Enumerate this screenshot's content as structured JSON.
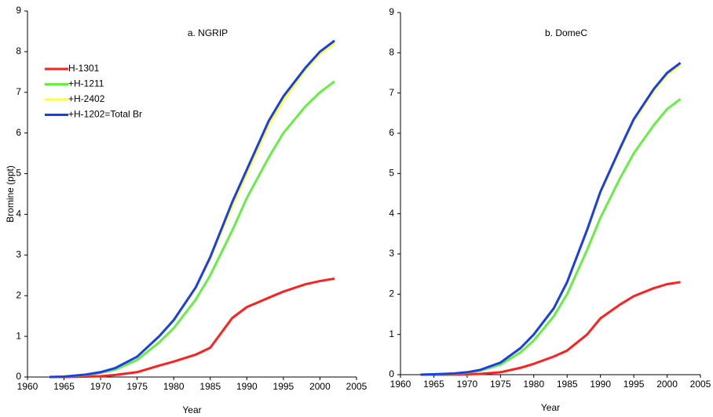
{
  "chart_data": [
    {
      "type": "line",
      "title": "a. NGRIP",
      "x_label": "Year",
      "y_label": "Bromine (ppt)",
      "x": [
        1963,
        1965,
        1968,
        1970,
        1972,
        1975,
        1978,
        1980,
        1983,
        1985,
        1988,
        1990,
        1993,
        1995,
        1998,
        2000,
        2002
      ],
      "series": [
        {
          "name": "H-1301",
          "color": "#ff2020",
          "values": [
            0,
            0,
            0.01,
            0.02,
            0.05,
            0.12,
            0.28,
            0.38,
            0.55,
            0.72,
            1.45,
            1.72,
            1.95,
            2.1,
            2.28,
            2.36,
            2.42
          ]
        },
        {
          "name": "+H-1211",
          "color": "#66ee44",
          "values": [
            0,
            0.01,
            0.05,
            0.1,
            0.18,
            0.42,
            0.85,
            1.2,
            1.9,
            2.5,
            3.6,
            4.4,
            5.4,
            6.0,
            6.65,
            7.0,
            7.27
          ]
        },
        {
          "name": "+H-2402",
          "color": "#ffff33",
          "values": [
            0,
            0.01,
            0.06,
            0.12,
            0.22,
            0.5,
            1.0,
            1.4,
            2.2,
            2.9,
            4.2,
            5.0,
            6.2,
            6.8,
            7.55,
            7.95,
            8.2
          ]
        },
        {
          "name": "+H-1202=Total Br",
          "color": "#1a3ee8",
          "values": [
            0,
            0.01,
            0.06,
            0.12,
            0.22,
            0.5,
            1.0,
            1.4,
            2.2,
            2.95,
            4.3,
            5.1,
            6.3,
            6.9,
            7.6,
            8.0,
            8.27
          ]
        }
      ],
      "xlim": [
        1960,
        2005
      ],
      "xticks": [
        1960,
        1965,
        1970,
        1975,
        1980,
        1985,
        1990,
        1995,
        2000,
        2005
      ],
      "ylim": [
        0,
        9
      ],
      "yticks": [
        0,
        1,
        2,
        3,
        4,
        5,
        6,
        7,
        8,
        9
      ],
      "legend": "upper left",
      "grid": false
    },
    {
      "type": "line",
      "title": "b. DomeC",
      "x_label": "Year",
      "x": [
        1963,
        1965,
        1968,
        1970,
        1972,
        1975,
        1978,
        1980,
        1983,
        1985,
        1988,
        1990,
        1993,
        1995,
        1998,
        2000,
        2002
      ],
      "series": [
        {
          "color": "#ff2020",
          "values": [
            0,
            0,
            0,
            0.01,
            0.02,
            0.06,
            0.17,
            0.27,
            0.45,
            0.6,
            1.0,
            1.4,
            1.75,
            1.95,
            2.15,
            2.25,
            2.3
          ]
        },
        {
          "color": "#66ee44",
          "values": [
            0,
            0.01,
            0.02,
            0.05,
            0.1,
            0.25,
            0.55,
            0.85,
            1.45,
            2.0,
            3.1,
            3.9,
            4.9,
            5.5,
            6.2,
            6.6,
            6.85
          ]
        },
        {
          "color": "#ffff33",
          "values": [
            0,
            0.01,
            0.03,
            0.06,
            0.12,
            0.3,
            0.65,
            1.0,
            1.65,
            2.3,
            3.6,
            4.5,
            5.6,
            6.3,
            7.05,
            7.45,
            7.7
          ]
        },
        {
          "color": "#1a3ee8",
          "values": [
            0,
            0.01,
            0.03,
            0.06,
            0.12,
            0.3,
            0.66,
            1.0,
            1.65,
            2.3,
            3.6,
            4.55,
            5.65,
            6.35,
            7.1,
            7.5,
            7.75
          ]
        }
      ],
      "xlim": [
        1960,
        2005
      ],
      "xticks": [
        1960,
        1965,
        1970,
        1975,
        1980,
        1985,
        1990,
        1995,
        2000,
        2005
      ],
      "ylim": [
        0,
        9
      ],
      "yticks": [
        0,
        1,
        2,
        3,
        4,
        5,
        6,
        7,
        8,
        9
      ],
      "grid": false
    }
  ]
}
